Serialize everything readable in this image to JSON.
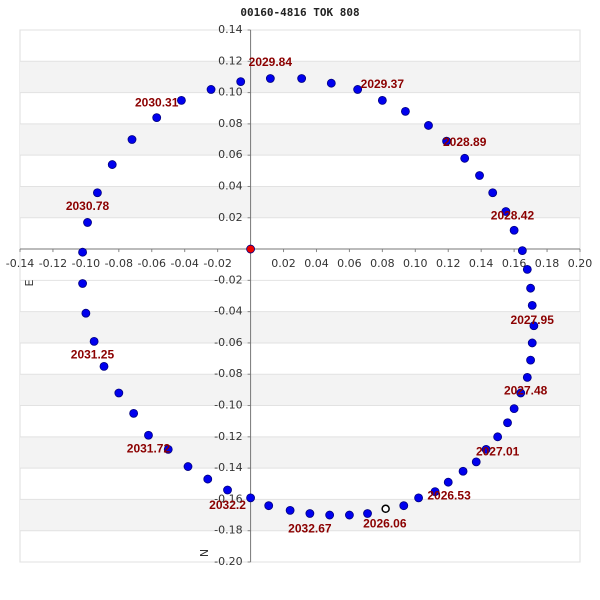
{
  "chart_data": {
    "type": "scatter",
    "title": "00160-4816 TOK 808",
    "xlabel": "E",
    "ylabel": "N",
    "xlim": [
      -0.14,
      0.2
    ],
    "ylim": [
      -0.2,
      0.14
    ],
    "xticks": [
      -0.14,
      -0.12,
      {
        "value": -0.1,
        "label": "-0.10"
      },
      -0.08,
      -0.06,
      -0.04,
      -0.02,
      0.02,
      0.04,
      0.06,
      0.08,
      {
        "value": 0.1,
        "label": "0.10"
      },
      0.12,
      0.14,
      0.16,
      0.18,
      {
        "value": 0.2,
        "label": "0.20"
      }
    ],
    "yticks": [
      0.14,
      0.12,
      {
        "value": 0.1,
        "label": "0.10"
      },
      0.08,
      0.06,
      0.04,
      0.02,
      -0.02,
      -0.04,
      -0.06,
      -0.08,
      {
        "value": -0.1,
        "label": "-0.10"
      },
      -0.12,
      -0.14,
      -0.16,
      -0.18,
      {
        "value": -0.2,
        "label": "-0.20"
      }
    ],
    "grid": true,
    "series": [
      {
        "color": "#0000ee",
        "marker": "filled",
        "x": [
          0.093,
          0.102,
          0.112,
          0.12,
          0.129,
          0.137,
          0.143,
          0.15,
          0.156,
          0.16,
          0.164,
          0.168,
          0.17,
          0.171,
          0.172,
          0.171,
          0.17,
          0.168,
          0.165,
          0.16,
          0.155,
          0.147,
          0.139,
          0.13,
          0.119,
          0.108,
          0.094,
          0.08,
          0.065,
          0.049,
          0.031,
          0.012,
          -0.006,
          -0.024,
          -0.042,
          -0.057,
          -0.072,
          -0.084,
          -0.093,
          -0.099,
          -0.102,
          -0.102,
          -0.1,
          -0.095,
          -0.089,
          -0.08,
          -0.071,
          -0.062,
          -0.05,
          -0.038,
          -0.026,
          -0.014,
          0.0,
          0.011,
          0.024,
          0.036,
          0.048,
          0.06,
          0.071
        ],
        "values": [
          -0.164,
          -0.159,
          -0.155,
          -0.149,
          -0.142,
          -0.136,
          -0.128,
          -0.12,
          -0.111,
          -0.102,
          -0.092,
          -0.082,
          -0.071,
          -0.06,
          -0.049,
          -0.036,
          -0.025,
          -0.013,
          -0.001,
          0.012,
          0.024,
          0.036,
          0.047,
          0.058,
          0.069,
          0.079,
          0.088,
          0.095,
          0.102,
          0.106,
          0.109,
          0.109,
          0.107,
          0.102,
          0.095,
          0.084,
          0.07,
          0.054,
          0.036,
          0.017,
          -0.002,
          -0.022,
          -0.041,
          -0.059,
          -0.075,
          -0.092,
          -0.105,
          -0.119,
          -0.128,
          -0.139,
          -0.147,
          -0.154,
          -0.159,
          -0.164,
          -0.167,
          -0.169,
          -0.17,
          -0.17,
          -0.169
        ]
      },
      {
        "color": "#ee0000",
        "marker": "filled",
        "x": [
          0
        ],
        "values": [
          0
        ]
      },
      {
        "color": "#000000",
        "marker": "open",
        "x": [
          0.082
        ],
        "values": [
          -0.166
        ]
      }
    ],
    "annotations": [
      {
        "text": "2026.06",
        "x": 0.0815,
        "y": -0.176
      },
      {
        "text": "2026.53",
        "x": 0.1205,
        "y": -0.158
      },
      {
        "text": "2027.01",
        "x": 0.15,
        "y": -0.13
      },
      {
        "text": "2027.48",
        "x": 0.167,
        "y": -0.091
      },
      {
        "text": "2027.95",
        "x": 0.171,
        "y": -0.046
      },
      {
        "text": "2028.42",
        "x": 0.159,
        "y": 0.021
      },
      {
        "text": "2028.89",
        "x": 0.13,
        "y": 0.068
      },
      {
        "text": "2029.37",
        "x": 0.08,
        "y": 0.105
      },
      {
        "text": "2029.84",
        "x": 0.012,
        "y": 0.119
      },
      {
        "text": "2030.31",
        "x": -0.057,
        "y": 0.093
      },
      {
        "text": "2030.78",
        "x": -0.099,
        "y": 0.027
      },
      {
        "text": "2031.25",
        "x": -0.096,
        "y": -0.068
      },
      {
        "text": "2031.72",
        "x": -0.062,
        "y": -0.128
      },
      {
        "text": "2032.2",
        "x": -0.014,
        "y": -0.164
      },
      {
        "text": "2032.67",
        "x": 0.036,
        "y": -0.179
      }
    ]
  }
}
